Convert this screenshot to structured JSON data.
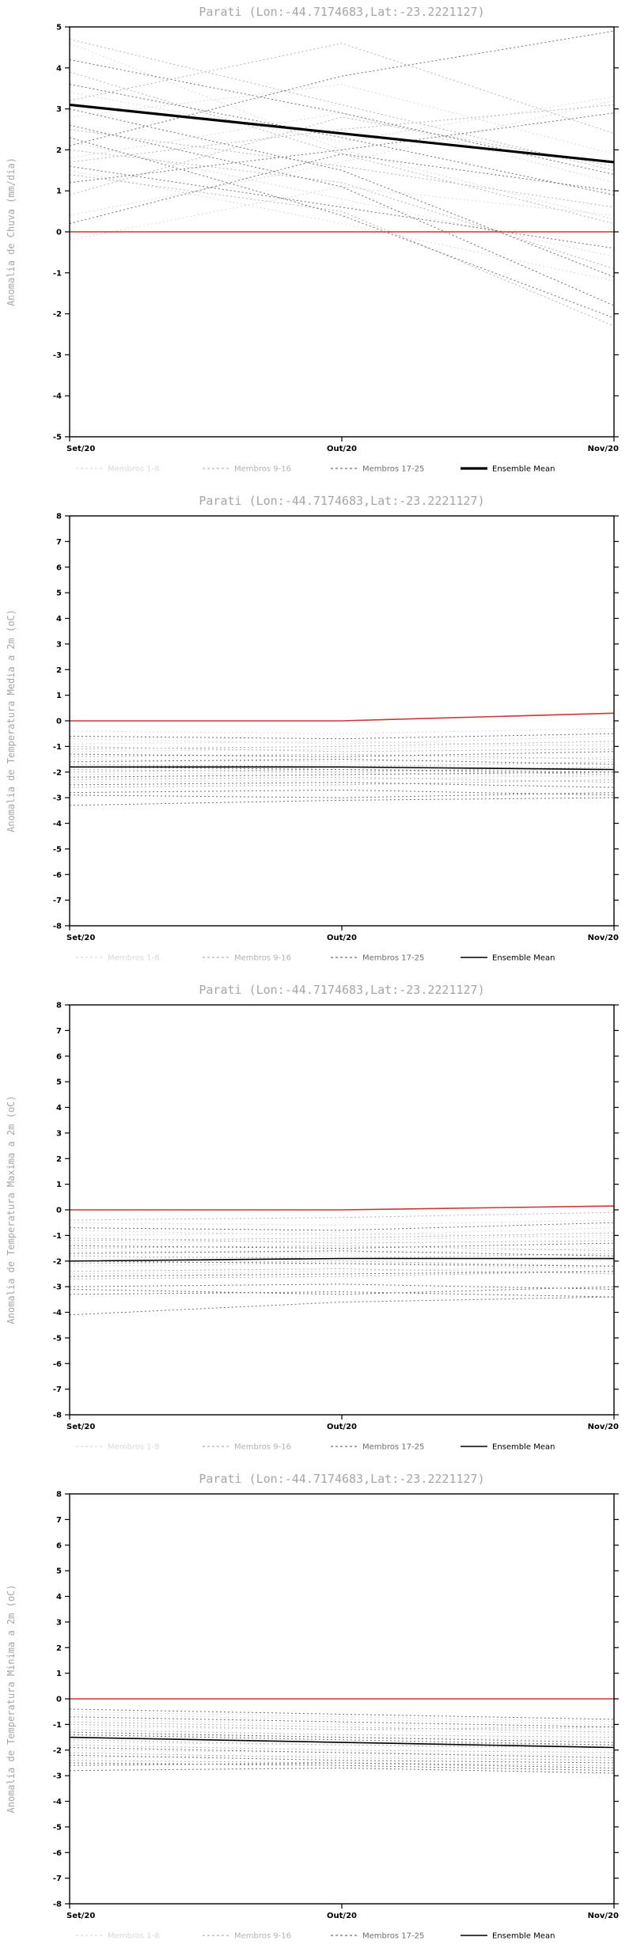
{
  "chart_data": [
    {
      "type": "line",
      "title": "Parati (Lon:-44.7174683,Lat:-23.2221127)",
      "ylabel": "Anomalia de Chuva (mm/dia)",
      "xlabel": "",
      "x_ticklabels": [
        "Set/20",
        "Out/20",
        "Nov/20"
      ],
      "ylim": [
        -5,
        5
      ],
      "ytick_step": 1,
      "member_groups": [
        {
          "label": "Membros 1-8",
          "color": "#d9d9d9",
          "series": [
            [
              4.6,
              2.0,
              0.3
            ],
            [
              1.8,
              2.9,
              1.2
            ],
            [
              0.4,
              1.7,
              3.2
            ],
            [
              2.2,
              0.8,
              -0.6
            ],
            [
              3.4,
              2.2,
              3.3
            ],
            [
              1.5,
              0.2,
              -1.2
            ],
            [
              -0.2,
              1.1,
              0.4
            ],
            [
              2.8,
              3.6,
              1.9
            ]
          ]
        },
        {
          "label": "Membros 9-16",
          "color": "#b3b3b3",
          "series": [
            [
              4.7,
              3.1,
              1.5
            ],
            [
              3.9,
              1.9,
              0.2
            ],
            [
              1.7,
              2.5,
              3.1
            ],
            [
              2.0,
              1.2,
              -0.9
            ],
            [
              0.9,
              2.8,
              1.6
            ],
            [
              3.2,
              4.6,
              2.4
            ],
            [
              1.4,
              0.5,
              -2.3
            ],
            [
              2.5,
              1.6,
              0.6
            ]
          ]
        },
        {
          "label": "Membros 17-25",
          "color": "#6f6f6f",
          "series": [
            [
              4.2,
              2.9,
              1.4
            ],
            [
              3.0,
              1.5,
              -1.1
            ],
            [
              2.1,
              3.8,
              4.9
            ],
            [
              1.6,
              0.6,
              -0.4
            ],
            [
              0.2,
              1.9,
              1.0
            ],
            [
              2.6,
              1.1,
              -1.8
            ],
            [
              3.6,
              2.3,
              0.9
            ],
            [
              1.2,
              2.0,
              2.9
            ],
            [
              2.3,
              0.4,
              -2.1
            ]
          ]
        }
      ],
      "ensemble_mean": {
        "label": "Ensemble Mean",
        "color": "#000000",
        "width": 3.2,
        "values": [
          3.1,
          2.4,
          1.7
        ]
      },
      "reference_line": {
        "color": "#c83737",
        "values": [
          0,
          0,
          0
        ]
      }
    },
    {
      "type": "line",
      "title": "Parati (Lon:-44.7174683,Lat:-23.2221127)",
      "ylabel": "Anomalia de Temperatura Media a 2m (oC)",
      "xlabel": "",
      "x_ticklabels": [
        "Set/20",
        "Out/20",
        "Nov/20"
      ],
      "ylim": [
        -8,
        8
      ],
      "ytick_step": 1,
      "member_groups": [
        {
          "label": "Membros 1-8",
          "color": "#d9d9d9",
          "series": [
            [
              -0.4,
              -0.5,
              -0.3
            ],
            [
              -0.9,
              -0.8,
              -1.0
            ],
            [
              -1.2,
              -1.1,
              -0.9
            ],
            [
              -1.5,
              -1.6,
              -1.4
            ],
            [
              -1.8,
              -1.7,
              -1.9
            ],
            [
              -2.1,
              -2.0,
              -2.2
            ],
            [
              -2.4,
              -2.3,
              -2.1
            ],
            [
              -0.7,
              -0.9,
              -0.6
            ]
          ]
        },
        {
          "label": "Membros 9-16",
          "color": "#b3b3b3",
          "series": [
            [
              -1.0,
              -1.2,
              -1.1
            ],
            [
              -1.4,
              -1.3,
              -1.5
            ],
            [
              -1.7,
              -1.8,
              -1.6
            ],
            [
              -2.0,
              -1.9,
              -2.1
            ],
            [
              -2.3,
              -2.2,
              -2.4
            ],
            [
              -2.6,
              -2.5,
              -2.3
            ],
            [
              -1.1,
              -1.0,
              -0.8
            ],
            [
              -1.9,
              -2.0,
              -1.8
            ]
          ]
        },
        {
          "label": "Membros 17-25",
          "color": "#6f6f6f",
          "series": [
            [
              -3.3,
              -3.1,
              -3.0
            ],
            [
              -2.8,
              -2.7,
              -2.9
            ],
            [
              -2.5,
              -2.4,
              -2.6
            ],
            [
              -2.2,
              -2.1,
              -2.0
            ],
            [
              -1.6,
              -1.5,
              -1.7
            ],
            [
              -1.3,
              -1.4,
              -1.2
            ],
            [
              -0.6,
              -0.7,
              -0.5
            ],
            [
              -2.9,
              -3.0,
              -2.8
            ],
            [
              -1.8,
              -1.9,
              -2.0
            ]
          ]
        }
      ],
      "ensemble_mean": {
        "label": "Ensemble Mean",
        "color": "#000000",
        "width": 1.6,
        "values": [
          -1.8,
          -1.8,
          -1.9
        ]
      },
      "reference_line": {
        "color": "#c83737",
        "values": [
          0,
          0,
          0.3
        ]
      }
    },
    {
      "type": "line",
      "title": "Parati (Lon:-44.7174683,Lat:-23.2221127)",
      "ylabel": "Anomalia de Temperatura Maxima a 2m (oC)",
      "xlabel": "",
      "x_ticklabels": [
        "Set/20",
        "Out/20",
        "Nov/20"
      ],
      "ylim": [
        -8,
        8
      ],
      "ytick_step": 1,
      "member_groups": [
        {
          "label": "Membros 1-8",
          "color": "#d9d9d9",
          "series": [
            [
              -0.5,
              -0.6,
              -0.4
            ],
            [
              -1.0,
              -0.9,
              -1.1
            ],
            [
              -1.3,
              -1.2,
              -1.0
            ],
            [
              -1.6,
              -1.7,
              -1.5
            ],
            [
              -1.9,
              -1.8,
              -2.0
            ],
            [
              -2.2,
              -2.1,
              -2.3
            ],
            [
              -2.5,
              -2.4,
              -2.2
            ],
            [
              -0.8,
              -1.0,
              -0.7
            ]
          ]
        },
        {
          "label": "Membros 9-16",
          "color": "#b3b3b3",
          "series": [
            [
              -1.1,
              -1.3,
              -1.2
            ],
            [
              -1.5,
              -1.4,
              -1.6
            ],
            [
              -1.8,
              -1.9,
              -1.7
            ],
            [
              -2.1,
              -2.0,
              -2.2
            ],
            [
              -2.4,
              -2.3,
              -2.5
            ],
            [
              -2.7,
              -2.6,
              -2.4
            ],
            [
              -1.2,
              -1.1,
              -0.9
            ],
            [
              -0.4,
              -0.3,
              -0.1
            ]
          ]
        },
        {
          "label": "Membros 17-25",
          "color": "#6f6f6f",
          "series": [
            [
              -4.1,
              -3.6,
              -3.4
            ],
            [
              -3.3,
              -3.2,
              -3.4
            ],
            [
              -3.0,
              -2.9,
              -3.1
            ],
            [
              -2.6,
              -2.5,
              -2.4
            ],
            [
              -1.7,
              -1.6,
              -1.8
            ],
            [
              -1.4,
              -1.5,
              -1.3
            ],
            [
              -0.7,
              -0.8,
              -0.5
            ],
            [
              -3.1,
              -3.3,
              -3.0
            ],
            [
              -2.0,
              -2.1,
              -2.2
            ]
          ]
        }
      ],
      "ensemble_mean": {
        "label": "Ensemble Mean",
        "color": "#000000",
        "width": 1.6,
        "values": [
          -2.0,
          -1.9,
          -1.9
        ]
      },
      "reference_line": {
        "color": "#c83737",
        "values": [
          0,
          0,
          0.15
        ]
      }
    },
    {
      "type": "line",
      "title": "Parati (Lon:-44.7174683,Lat:-23.2221127)",
      "ylabel": "Anomalia de Temperatura Minima a 2m (oC)",
      "xlabel": "",
      "x_ticklabels": [
        "Set/20",
        "Out/20",
        "Nov/20"
      ],
      "ylim": [
        -8,
        8
      ],
      "ytick_step": 1,
      "member_groups": [
        {
          "label": "Membros 1-8",
          "color": "#d9d9d9",
          "series": [
            [
              -0.5,
              -0.7,
              -0.9
            ],
            [
              -0.8,
              -1.0,
              -1.2
            ],
            [
              -1.1,
              -1.2,
              -1.4
            ],
            [
              -1.4,
              -1.5,
              -1.6
            ],
            [
              -1.7,
              -1.8,
              -2.0
            ],
            [
              -2.0,
              -2.1,
              -2.2
            ],
            [
              -2.3,
              -2.2,
              -2.4
            ],
            [
              -0.6,
              -0.8,
              -1.0
            ]
          ]
        },
        {
          "label": "Membros 9-16",
          "color": "#b3b3b3",
          "series": [
            [
              -0.9,
              -1.1,
              -1.3
            ],
            [
              -1.2,
              -1.4,
              -1.5
            ],
            [
              -1.5,
              -1.7,
              -1.8
            ],
            [
              -1.8,
              -2.0,
              -2.1
            ],
            [
              -2.1,
              -2.3,
              -2.4
            ],
            [
              -2.4,
              -2.5,
              -2.6
            ],
            [
              -1.0,
              -1.2,
              -1.1
            ],
            [
              -1.6,
              -1.8,
              -1.9
            ]
          ]
        },
        {
          "label": "Membros 17-25",
          "color": "#6f6f6f",
          "series": [
            [
              -2.8,
              -2.7,
              -2.9
            ],
            [
              -2.6,
              -2.5,
              -2.7
            ],
            [
              -2.2,
              -2.4,
              -2.5
            ],
            [
              -1.9,
              -2.1,
              -2.3
            ],
            [
              -1.3,
              -1.5,
              -1.7
            ],
            [
              -0.7,
              -0.9,
              -1.1
            ],
            [
              -0.4,
              -0.6,
              -0.8
            ],
            [
              -2.5,
              -2.6,
              -2.8
            ],
            [
              -1.4,
              -1.6,
              -1.8
            ]
          ]
        }
      ],
      "ensemble_mean": {
        "label": "Ensemble Mean",
        "color": "#000000",
        "width": 1.6,
        "values": [
          -1.5,
          -1.7,
          -1.9
        ]
      },
      "reference_line": {
        "color": "#c83737",
        "values": [
          0,
          0,
          0
        ]
      }
    }
  ]
}
